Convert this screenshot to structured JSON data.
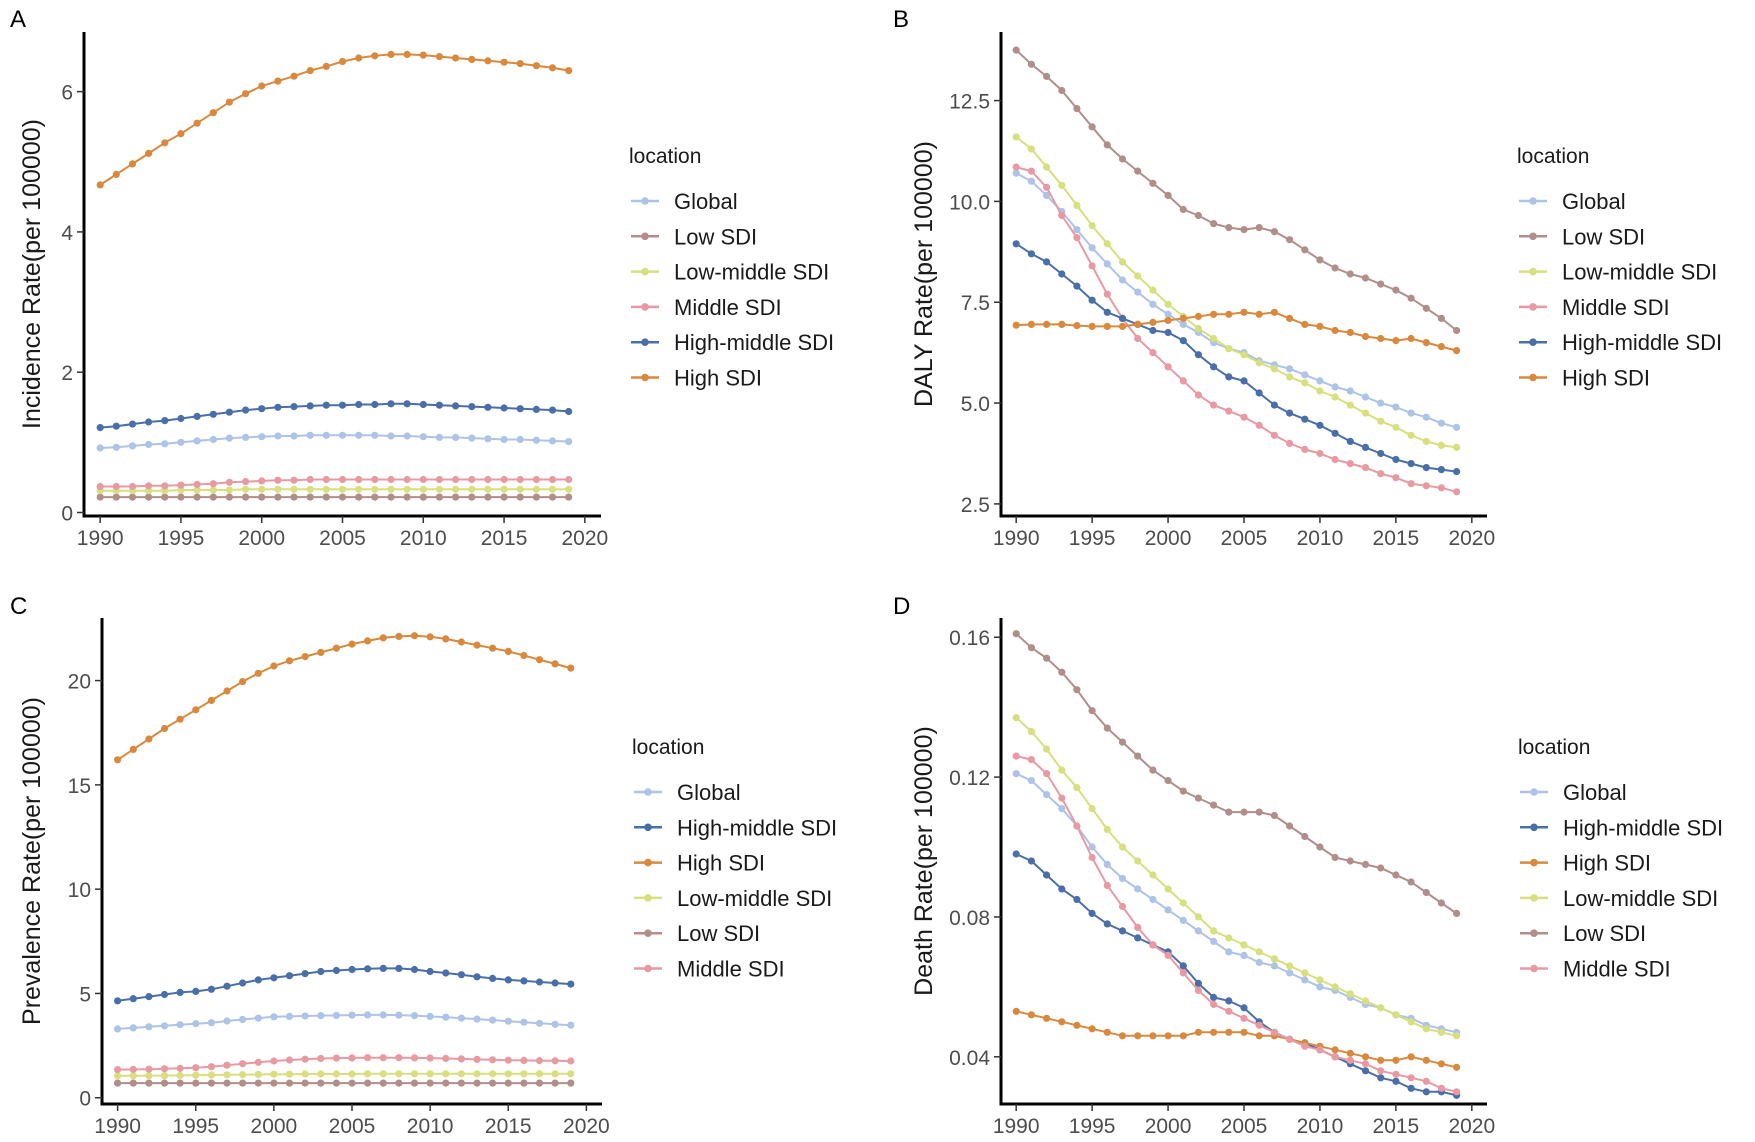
{
  "chart_data": [
    {
      "panel": "A",
      "type": "line",
      "ylabel": "Incidence Rate(per 100000)",
      "xlabel": "",
      "x": [
        1990,
        1991,
        1992,
        1993,
        1994,
        1995,
        1996,
        1997,
        1998,
        1999,
        2000,
        2001,
        2002,
        2003,
        2004,
        2005,
        2006,
        2007,
        2008,
        2009,
        2010,
        2011,
        2012,
        2013,
        2014,
        2015,
        2016,
        2017,
        2018,
        2019
      ],
      "xlim": [
        1989,
        2021
      ],
      "ylim": [
        -0.05,
        6.85
      ],
      "xticks": [
        1990,
        1995,
        2000,
        2005,
        2010,
        2015,
        2020
      ],
      "yticks": [
        0,
        2,
        4,
        6
      ],
      "legend_title": "location",
      "legend_position": "right",
      "series": [
        {
          "name": "Global",
          "color": "#aec3e5",
          "values": [
            0.92,
            0.93,
            0.95,
            0.97,
            0.98,
            1.0,
            1.02,
            1.04,
            1.06,
            1.07,
            1.08,
            1.09,
            1.09,
            1.1,
            1.1,
            1.1,
            1.1,
            1.1,
            1.09,
            1.09,
            1.08,
            1.07,
            1.07,
            1.06,
            1.05,
            1.04,
            1.04,
            1.03,
            1.02,
            1.01
          ]
        },
        {
          "name": "Low SDI",
          "color": "#b08f8a",
          "values": [
            0.22,
            0.22,
            0.22,
            0.22,
            0.22,
            0.22,
            0.22,
            0.22,
            0.22,
            0.22,
            0.22,
            0.22,
            0.22,
            0.22,
            0.22,
            0.22,
            0.22,
            0.22,
            0.22,
            0.22,
            0.22,
            0.22,
            0.22,
            0.22,
            0.22,
            0.22,
            0.22,
            0.22,
            0.22,
            0.22
          ]
        },
        {
          "name": "Low-middle SDI",
          "color": "#d7df7f",
          "values": [
            0.31,
            0.31,
            0.31,
            0.31,
            0.31,
            0.32,
            0.32,
            0.32,
            0.32,
            0.33,
            0.33,
            0.33,
            0.33,
            0.33,
            0.33,
            0.33,
            0.33,
            0.33,
            0.33,
            0.33,
            0.33,
            0.33,
            0.33,
            0.33,
            0.33,
            0.33,
            0.33,
            0.33,
            0.33,
            0.33
          ]
        },
        {
          "name": "Middle SDI",
          "color": "#e89aa3",
          "values": [
            0.37,
            0.37,
            0.37,
            0.38,
            0.38,
            0.39,
            0.4,
            0.41,
            0.43,
            0.44,
            0.45,
            0.46,
            0.46,
            0.47,
            0.47,
            0.47,
            0.47,
            0.47,
            0.47,
            0.47,
            0.47,
            0.47,
            0.47,
            0.47,
            0.47,
            0.47,
            0.47,
            0.47,
            0.47,
            0.47
          ]
        },
        {
          "name": "High-middle SDI",
          "color": "#4a6fa8",
          "values": [
            1.21,
            1.23,
            1.26,
            1.29,
            1.31,
            1.34,
            1.37,
            1.4,
            1.43,
            1.46,
            1.48,
            1.5,
            1.51,
            1.52,
            1.53,
            1.53,
            1.54,
            1.54,
            1.55,
            1.55,
            1.54,
            1.53,
            1.52,
            1.51,
            1.5,
            1.49,
            1.48,
            1.47,
            1.46,
            1.44
          ]
        },
        {
          "name": "High SDI",
          "color": "#d9893e",
          "values": [
            4.67,
            4.82,
            4.97,
            5.12,
            5.27,
            5.4,
            5.55,
            5.7,
            5.85,
            5.97,
            6.08,
            6.15,
            6.22,
            6.3,
            6.36,
            6.43,
            6.48,
            6.51,
            6.53,
            6.53,
            6.52,
            6.5,
            6.48,
            6.46,
            6.44,
            6.42,
            6.4,
            6.37,
            6.34,
            6.3
          ]
        }
      ]
    },
    {
      "panel": "B",
      "type": "line",
      "ylabel": "DALY Rate(per 100000)",
      "xlabel": "",
      "x": [
        1990,
        1991,
        1992,
        1993,
        1994,
        1995,
        1996,
        1997,
        1998,
        1999,
        2000,
        2001,
        2002,
        2003,
        2004,
        2005,
        2006,
        2007,
        2008,
        2009,
        2010,
        2011,
        2012,
        2013,
        2014,
        2015,
        2016,
        2017,
        2018,
        2019
      ],
      "xlim": [
        1989,
        2021
      ],
      "ylim": [
        2.2,
        14.2
      ],
      "xticks": [
        1990,
        1995,
        2000,
        2005,
        2010,
        2015,
        2020
      ],
      "yticks": [
        2.5,
        5.0,
        7.5,
        10.0,
        12.5
      ],
      "ytick_labels": [
        "2.5",
        "5.0",
        "7.5",
        "10.0",
        "12.5"
      ],
      "legend_title": "location",
      "legend_position": "right",
      "series": [
        {
          "name": "Global",
          "color": "#aec3e5",
          "values": [
            10.7,
            10.5,
            10.15,
            9.75,
            9.3,
            8.85,
            8.45,
            8.05,
            7.75,
            7.45,
            7.2,
            6.95,
            6.75,
            6.5,
            6.35,
            6.25,
            6.05,
            5.95,
            5.85,
            5.7,
            5.55,
            5.4,
            5.3,
            5.15,
            5.0,
            4.9,
            4.75,
            4.65,
            4.5,
            4.4
          ]
        },
        {
          "name": "Low SDI",
          "color": "#b08f8a",
          "values": [
            13.75,
            13.4,
            13.1,
            12.75,
            12.3,
            11.85,
            11.4,
            11.05,
            10.75,
            10.45,
            10.15,
            9.8,
            9.65,
            9.45,
            9.35,
            9.3,
            9.35,
            9.25,
            9.05,
            8.8,
            8.55,
            8.35,
            8.2,
            8.1,
            7.95,
            7.8,
            7.6,
            7.35,
            7.1,
            6.8
          ]
        },
        {
          "name": "Low-middle SDI",
          "color": "#d7df7f",
          "values": [
            11.6,
            11.3,
            10.85,
            10.4,
            9.9,
            9.4,
            8.95,
            8.5,
            8.15,
            7.8,
            7.45,
            7.15,
            6.85,
            6.6,
            6.35,
            6.2,
            6.0,
            5.85,
            5.65,
            5.5,
            5.3,
            5.15,
            4.95,
            4.75,
            4.55,
            4.4,
            4.2,
            4.05,
            3.95,
            3.9
          ]
        },
        {
          "name": "Middle SDI",
          "color": "#e89aa3",
          "values": [
            10.85,
            10.75,
            10.35,
            9.65,
            9.1,
            8.4,
            7.7,
            7.1,
            6.6,
            6.25,
            5.9,
            5.55,
            5.2,
            4.95,
            4.8,
            4.65,
            4.45,
            4.2,
            4.0,
            3.85,
            3.75,
            3.6,
            3.5,
            3.4,
            3.25,
            3.15,
            3.0,
            2.95,
            2.9,
            2.8
          ]
        },
        {
          "name": "High-middle SDI",
          "color": "#4a6fa8",
          "values": [
            8.95,
            8.7,
            8.5,
            8.2,
            7.9,
            7.55,
            7.25,
            7.1,
            6.95,
            6.8,
            6.75,
            6.55,
            6.2,
            5.9,
            5.65,
            5.55,
            5.25,
            4.95,
            4.75,
            4.6,
            4.45,
            4.25,
            4.05,
            3.9,
            3.75,
            3.6,
            3.5,
            3.4,
            3.35,
            3.3
          ]
        },
        {
          "name": "High SDI",
          "color": "#d9893e",
          "values": [
            6.93,
            6.95,
            6.95,
            6.95,
            6.92,
            6.9,
            6.9,
            6.9,
            6.95,
            7.0,
            7.05,
            7.1,
            7.15,
            7.2,
            7.2,
            7.25,
            7.2,
            7.25,
            7.1,
            6.95,
            6.9,
            6.8,
            6.75,
            6.65,
            6.6,
            6.55,
            6.6,
            6.5,
            6.4,
            6.3
          ]
        }
      ]
    },
    {
      "panel": "C",
      "type": "line",
      "ylabel": "Prevalence Rate(per 100000)",
      "xlabel": "",
      "x": [
        1990,
        1991,
        1992,
        1993,
        1994,
        1995,
        1996,
        1997,
        1998,
        1999,
        2000,
        2001,
        2002,
        2003,
        2004,
        2005,
        2006,
        2007,
        2008,
        2009,
        2010,
        2011,
        2012,
        2013,
        2014,
        2015,
        2016,
        2017,
        2018,
        2019
      ],
      "xlim": [
        1989,
        2021
      ],
      "ylim": [
        -0.3,
        23.0
      ],
      "xticks": [
        1990,
        1995,
        2000,
        2005,
        2010,
        2015,
        2020
      ],
      "yticks": [
        0,
        5,
        10,
        15,
        20
      ],
      "legend_title": "location",
      "legend_position": "right",
      "series": [
        {
          "name": "Global",
          "color": "#aec3e5",
          "values": [
            3.3,
            3.35,
            3.4,
            3.45,
            3.5,
            3.55,
            3.6,
            3.68,
            3.75,
            3.82,
            3.88,
            3.9,
            3.92,
            3.94,
            3.95,
            3.96,
            3.97,
            3.97,
            3.96,
            3.94,
            3.9,
            3.86,
            3.82,
            3.77,
            3.72,
            3.67,
            3.62,
            3.57,
            3.52,
            3.48
          ]
        },
        {
          "name": "High-middle SDI",
          "color": "#4a6fa8",
          "values": [
            4.65,
            4.75,
            4.85,
            4.95,
            5.05,
            5.1,
            5.2,
            5.35,
            5.5,
            5.65,
            5.75,
            5.85,
            5.95,
            6.05,
            6.1,
            6.15,
            6.18,
            6.2,
            6.2,
            6.15,
            6.05,
            5.98,
            5.9,
            5.8,
            5.72,
            5.65,
            5.6,
            5.55,
            5.5,
            5.45
          ]
        },
        {
          "name": "High SDI",
          "color": "#d9893e",
          "values": [
            16.2,
            16.7,
            17.2,
            17.7,
            18.15,
            18.6,
            19.05,
            19.5,
            19.95,
            20.35,
            20.7,
            20.95,
            21.15,
            21.35,
            21.55,
            21.75,
            21.9,
            22.05,
            22.12,
            22.15,
            22.1,
            22.0,
            21.85,
            21.7,
            21.55,
            21.4,
            21.2,
            21.0,
            20.8,
            20.6
          ]
        },
        {
          "name": "Low-middle SDI",
          "color": "#d7df7f",
          "values": [
            1.05,
            1.05,
            1.06,
            1.06,
            1.07,
            1.08,
            1.09,
            1.1,
            1.11,
            1.12,
            1.13,
            1.13,
            1.14,
            1.14,
            1.14,
            1.14,
            1.15,
            1.15,
            1.15,
            1.15,
            1.15,
            1.15,
            1.15,
            1.15,
            1.15,
            1.15,
            1.15,
            1.15,
            1.15,
            1.15
          ]
        },
        {
          "name": "Low SDI",
          "color": "#b08f8a",
          "values": [
            0.7,
            0.7,
            0.7,
            0.7,
            0.7,
            0.7,
            0.7,
            0.7,
            0.7,
            0.7,
            0.7,
            0.7,
            0.7,
            0.7,
            0.7,
            0.7,
            0.7,
            0.7,
            0.7,
            0.7,
            0.7,
            0.7,
            0.7,
            0.7,
            0.7,
            0.7,
            0.7,
            0.7,
            0.7,
            0.7
          ]
        },
        {
          "name": "Middle SDI",
          "color": "#e89aa3",
          "values": [
            1.35,
            1.36,
            1.37,
            1.39,
            1.41,
            1.44,
            1.49,
            1.56,
            1.63,
            1.7,
            1.76,
            1.81,
            1.85,
            1.88,
            1.9,
            1.91,
            1.92,
            1.92,
            1.92,
            1.91,
            1.9,
            1.88,
            1.86,
            1.84,
            1.82,
            1.8,
            1.79,
            1.78,
            1.77,
            1.76
          ]
        }
      ]
    },
    {
      "panel": "D",
      "type": "line",
      "ylabel": "Death Rate(per 100000)",
      "xlabel": "",
      "x": [
        1990,
        1991,
        1992,
        1993,
        1994,
        1995,
        1996,
        1997,
        1998,
        1999,
        2000,
        2001,
        2002,
        2003,
        2004,
        2005,
        2006,
        2007,
        2008,
        2009,
        2010,
        2011,
        2012,
        2013,
        2014,
        2015,
        2016,
        2017,
        2018,
        2019
      ],
      "xlim": [
        1989,
        2021
      ],
      "ylim": [
        0.0265,
        0.1655
      ],
      "xticks": [
        1990,
        1995,
        2000,
        2005,
        2010,
        2015,
        2020
      ],
      "yticks": [
        0.04,
        0.08,
        0.12,
        0.16
      ],
      "ytick_labels": [
        "0.04",
        "0.08",
        "0.12",
        "0.16"
      ],
      "legend_title": "location",
      "legend_position": "right",
      "series": [
        {
          "name": "Global",
          "color": "#aec3e5",
          "values": [
            0.121,
            0.119,
            0.115,
            0.111,
            0.106,
            0.1,
            0.095,
            0.091,
            0.088,
            0.085,
            0.082,
            0.079,
            0.076,
            0.073,
            0.07,
            0.069,
            0.067,
            0.066,
            0.064,
            0.062,
            0.06,
            0.059,
            0.057,
            0.055,
            0.054,
            0.052,
            0.051,
            0.049,
            0.048,
            0.047
          ]
        },
        {
          "name": "High-middle SDI",
          "color": "#4a6fa8",
          "values": [
            0.098,
            0.096,
            0.092,
            0.088,
            0.085,
            0.081,
            0.078,
            0.076,
            0.074,
            0.072,
            0.07,
            0.066,
            0.061,
            0.057,
            0.056,
            0.054,
            0.05,
            0.047,
            0.045,
            0.044,
            0.042,
            0.04,
            0.038,
            0.036,
            0.034,
            0.033,
            0.031,
            0.03,
            0.03,
            0.029
          ]
        },
        {
          "name": "High SDI",
          "color": "#d9893e",
          "values": [
            0.053,
            0.052,
            0.051,
            0.05,
            0.049,
            0.048,
            0.047,
            0.046,
            0.046,
            0.046,
            0.046,
            0.046,
            0.047,
            0.047,
            0.047,
            0.047,
            0.046,
            0.046,
            0.045,
            0.044,
            0.043,
            0.042,
            0.041,
            0.04,
            0.039,
            0.039,
            0.04,
            0.039,
            0.038,
            0.037
          ]
        },
        {
          "name": "Low-middle SDI",
          "color": "#d7df7f",
          "values": [
            0.137,
            0.133,
            0.128,
            0.122,
            0.117,
            0.111,
            0.105,
            0.1,
            0.096,
            0.092,
            0.088,
            0.084,
            0.08,
            0.076,
            0.074,
            0.072,
            0.07,
            0.068,
            0.066,
            0.064,
            0.062,
            0.06,
            0.058,
            0.056,
            0.054,
            0.052,
            0.05,
            0.048,
            0.047,
            0.046
          ]
        },
        {
          "name": "Low SDI",
          "color": "#b08f8a",
          "values": [
            0.161,
            0.157,
            0.154,
            0.15,
            0.145,
            0.139,
            0.134,
            0.13,
            0.126,
            0.122,
            0.119,
            0.116,
            0.114,
            0.112,
            0.11,
            0.11,
            0.11,
            0.109,
            0.106,
            0.103,
            0.1,
            0.097,
            0.096,
            0.095,
            0.094,
            0.092,
            0.09,
            0.087,
            0.084,
            0.081
          ]
        },
        {
          "name": "Middle SDI",
          "color": "#e89aa3",
          "values": [
            0.126,
            0.125,
            0.121,
            0.114,
            0.106,
            0.097,
            0.089,
            0.083,
            0.077,
            0.072,
            0.069,
            0.064,
            0.059,
            0.055,
            0.053,
            0.051,
            0.049,
            0.047,
            0.045,
            0.043,
            0.042,
            0.04,
            0.039,
            0.038,
            0.036,
            0.035,
            0.034,
            0.033,
            0.031,
            0.03
          ]
        }
      ]
    }
  ]
}
